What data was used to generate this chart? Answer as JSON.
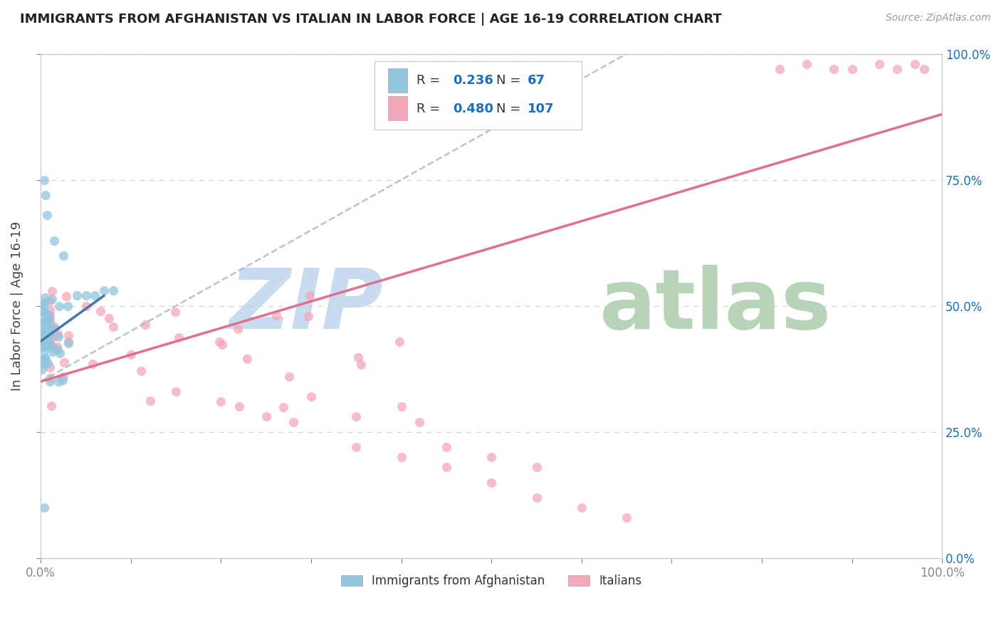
{
  "title": "IMMIGRANTS FROM AFGHANISTAN VS ITALIAN IN LABOR FORCE | AGE 16-19 CORRELATION CHART",
  "source": "Source: ZipAtlas.com",
  "ylabel": "In Labor Force | Age 16-19",
  "xmin": 0.0,
  "xmax": 1.0,
  "ymin": 0.0,
  "ymax": 1.0,
  "afghanistan_R": 0.236,
  "afghanistan_N": 67,
  "italian_R": 0.48,
  "italian_N": 107,
  "afghanistan_color": "#92c5de",
  "italian_color": "#f4a7b9",
  "afghanistan_line_color": "#aaaacc",
  "italian_line_color": "#e07090",
  "background_color": "#ffffff",
  "grid_color": "#cccccc",
  "title_color": "#222222",
  "legend_R_color": "#1a6fba",
  "watermark_zip_color": "#c8dcf0",
  "watermark_atlas_color": "#b8d4b8"
}
